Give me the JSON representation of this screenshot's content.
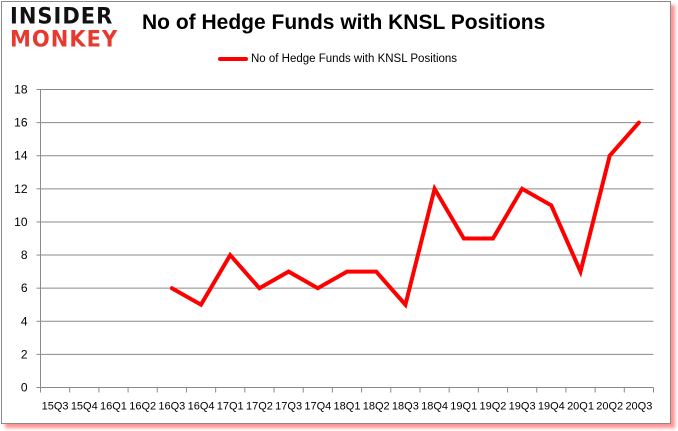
{
  "logo": {
    "line1": "INSIDER",
    "line2": "MONKEY"
  },
  "title": "No of Hedge Funds with KNSL Positions",
  "legend": {
    "label": "No of Hedge Funds with KNSL Positions",
    "color": "#ff0000"
  },
  "colors": {
    "line": "#ff0000",
    "grid": "#8a8a8a",
    "logo_dark": "#111111",
    "logo_red": "#e8392f"
  },
  "chart_data": {
    "type": "line",
    "title": "No of Hedge Funds with KNSL Positions",
    "xlabel": "",
    "ylabel": "",
    "ylim": [
      0,
      18
    ],
    "yticks": [
      0,
      2,
      4,
      6,
      8,
      10,
      12,
      14,
      16,
      18
    ],
    "grid": true,
    "legend_position": "top",
    "categories": [
      "15Q3",
      "15Q4",
      "16Q1",
      "16Q2",
      "16Q3",
      "16Q4",
      "17Q1",
      "17Q2",
      "17Q3",
      "17Q4",
      "18Q1",
      "18Q2",
      "18Q3",
      "18Q4",
      "19Q1",
      "19Q2",
      "19Q3",
      "19Q4",
      "20Q1",
      "20Q2",
      "20Q3"
    ],
    "series": [
      {
        "name": "No of Hedge Funds with KNSL Positions",
        "color": "#ff0000",
        "values": [
          null,
          null,
          null,
          null,
          6,
          5,
          8,
          6,
          7,
          6,
          7,
          7,
          5,
          12,
          9,
          9,
          12,
          11,
          7,
          14,
          16
        ]
      }
    ]
  }
}
